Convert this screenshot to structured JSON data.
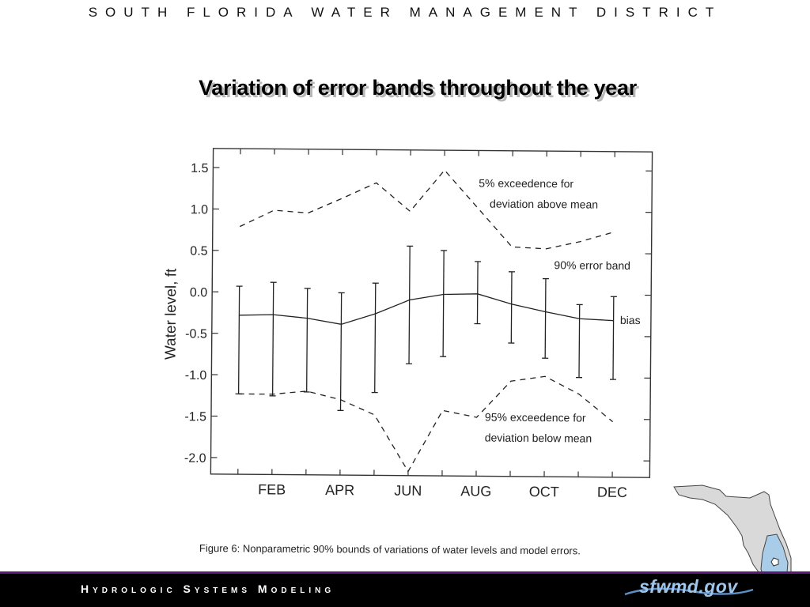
{
  "header": {
    "title": "SOUTH FLORIDA WATER MANAGEMENT DISTRICT"
  },
  "slide": {
    "title": "Variation of error bands throughout the year"
  },
  "caption": "Figure 6:  Nonparametric 90% bounds of variations of water levels and model errors.",
  "footer": {
    "title": "Hydrologic Systems Modeling",
    "logo": "sfwmd.gov"
  },
  "chart_data": {
    "type": "line",
    "title": "",
    "xlabel": "",
    "ylabel": "Water level, ft",
    "x": [
      1,
      2,
      3,
      4,
      5,
      6,
      7,
      8,
      9,
      10,
      11,
      12
    ],
    "xticks": [
      {
        "x": 2,
        "label": "FEB"
      },
      {
        "x": 4,
        "label": "APR"
      },
      {
        "x": 6,
        "label": "JUN"
      },
      {
        "x": 8,
        "label": "AUG"
      },
      {
        "x": 10,
        "label": "OCT"
      },
      {
        "x": 12,
        "label": "DEC"
      }
    ],
    "xlim": [
      0.2,
      13.1
    ],
    "yticks": [
      1.5,
      1.0,
      0.5,
      0.0,
      -0.5,
      -1.0,
      -1.5,
      -2.0
    ],
    "ytick_labels": [
      "1.5",
      "1.0",
      "0.5",
      "0.0",
      "-0.5",
      "-1.0",
      "-1.5",
      "-2.0"
    ],
    "ylim": [
      -2.2,
      1.73
    ],
    "grid": false,
    "series": [
      {
        "name": "bias",
        "style": "solid",
        "values": [
          -0.28,
          -0.27,
          -0.31,
          -0.38,
          -0.25,
          -0.08,
          -0.01,
          0.0,
          -0.12,
          -0.21,
          -0.29,
          -0.31
        ],
        "error_upper": [
          0.07,
          0.12,
          0.05,
          0.0,
          0.12,
          0.57,
          0.52,
          0.39,
          0.27,
          0.19,
          -0.12,
          -0.02
        ],
        "error_lower": [
          -1.23,
          -1.25,
          -1.2,
          -1.42,
          -1.2,
          -0.85,
          -0.76,
          -0.36,
          -0.59,
          -0.77,
          -1.0,
          -1.02
        ]
      },
      {
        "name": "5% exceedence for deviation above mean",
        "style": "dashed",
        "values": [
          0.79,
          0.99,
          0.96,
          1.14,
          1.33,
          0.99,
          1.49,
          1.03,
          0.57,
          0.55,
          0.64,
          0.76
        ]
      },
      {
        "name": "95% exceedence for deviation below mean",
        "style": "dashed",
        "values": [
          -1.23,
          -1.23,
          -1.19,
          -1.29,
          -1.47,
          -2.15,
          -1.41,
          -1.49,
          -1.05,
          -0.99,
          -1.2,
          -1.53
        ]
      }
    ],
    "annotations": [
      {
        "lines": [
          "5% exceedence for",
          "deviation above mean"
        ]
      },
      {
        "lines": [
          "90% error band"
        ]
      },
      {
        "lines": [
          "bias"
        ]
      },
      {
        "lines": [
          "95% exceedence for",
          "deviation below mean"
        ]
      }
    ]
  }
}
